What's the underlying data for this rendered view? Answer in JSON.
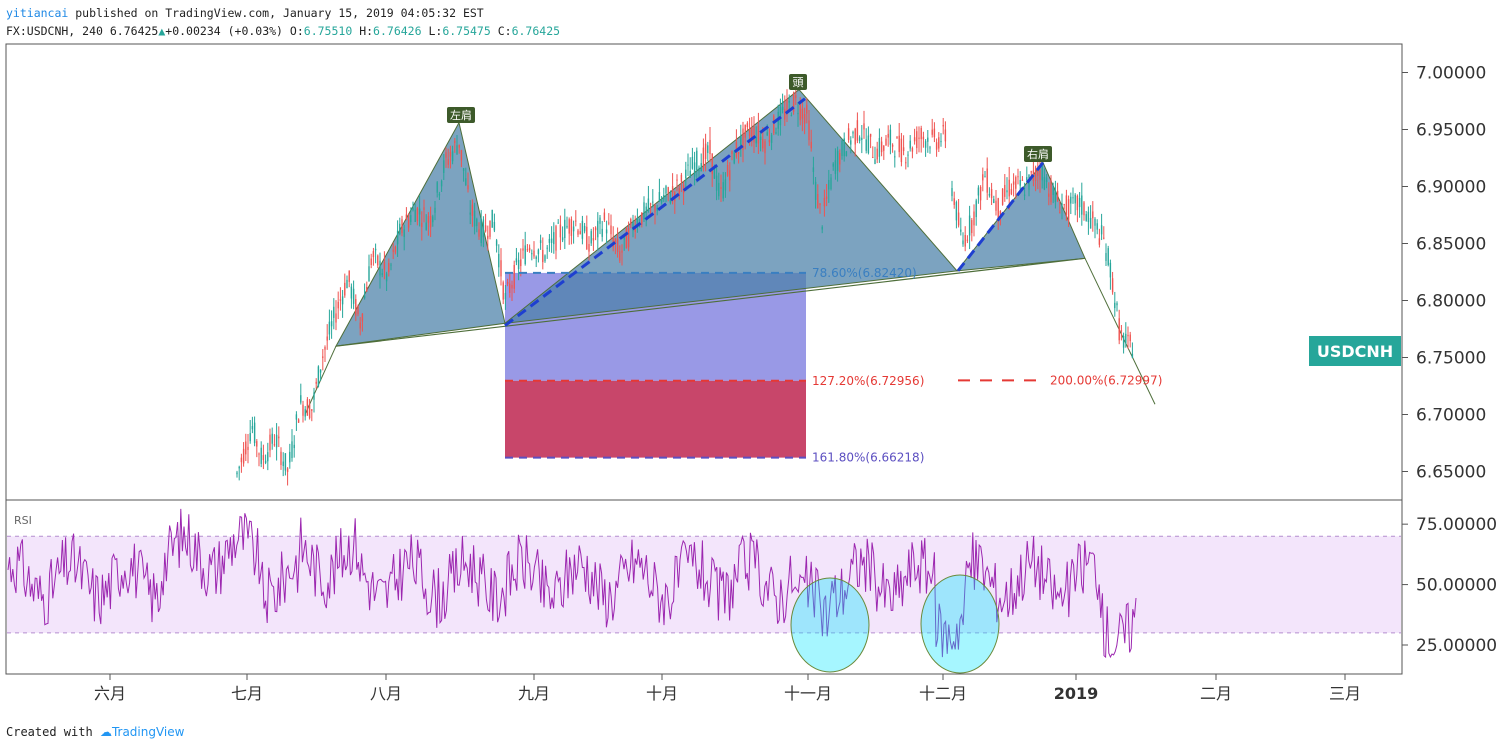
{
  "header": {
    "author": "yitiancai",
    "published_text": " published on TradingView.com, January 15, 2019 04:05:32 EST",
    "symbol": "FX:USDCNH, 240",
    "last": "6.76425",
    "change": "+0.00234 (+0.03%)",
    "o_label": "O:",
    "o_value": "6.75510",
    "h_label": "H:",
    "h_value": "6.76426",
    "l_label": "L:",
    "l_value": "6.75475",
    "c_label": "C:",
    "c_value": "6.76425"
  },
  "footer": {
    "created_with": "Created with",
    "brand": "TradingView"
  },
  "chart_data": {
    "type": "line",
    "symbol_badge": "USDCNH",
    "price_axis": {
      "ylim": [
        6.625,
        7.025
      ],
      "ticks": [
        "7.00000",
        "6.95000",
        "6.90000",
        "6.85000",
        "6.80000",
        "6.75000",
        "6.70000",
        "6.65000"
      ]
    },
    "rsi": {
      "label": "RSI",
      "ylim": [
        13,
        85
      ],
      "ticks": [
        "75.00000",
        "50.00000",
        "25.00000"
      ],
      "band": [
        30,
        70
      ]
    },
    "x_axis": {
      "labels": [
        {
          "text": "六月",
          "bold": false
        },
        {
          "text": "七月",
          "bold": false
        },
        {
          "text": "八月",
          "bold": false
        },
        {
          "text": "九月",
          "bold": false
        },
        {
          "text": "十月",
          "bold": false
        },
        {
          "text": "十一月",
          "bold": false
        },
        {
          "text": "十二月",
          "bold": false
        },
        {
          "text": "2019",
          "bold": true
        },
        {
          "text": "二月",
          "bold": false
        },
        {
          "text": "三月",
          "bold": false
        }
      ]
    },
    "pattern_labels": {
      "left_shoulder": "左肩",
      "head": "頭",
      "right_shoulder": "右肩"
    },
    "fib_levels": [
      {
        "label": "78.60%(6.82420)",
        "price": 6.8242,
        "color": "#3a7fc1"
      },
      {
        "label": "127.20%(6.72956)",
        "price": 6.72956,
        "color": "#e53935"
      },
      {
        "label": "161.80%(6.66218)",
        "price": 6.66218,
        "color": "#5c4fc1"
      },
      {
        "label": "200.00%(6.72997)",
        "price": 6.72997,
        "color": "#e53935"
      }
    ],
    "pattern_points": {
      "start": [
        0,
        6.76
      ],
      "left_shoulder": [
        1,
        6.956
      ],
      "neck1": [
        2,
        6.78
      ],
      "head": [
        3,
        6.985
      ],
      "neck2": [
        4,
        6.826
      ],
      "right_shoulder": [
        5,
        6.921
      ],
      "end": [
        6,
        6.837
      ]
    },
    "colors": {
      "up": "#26a69a",
      "down": "#ef5350",
      "rsi": "#9c27b0",
      "pattern": "#4a7fa8",
      "badge": "#26a69a"
    }
  }
}
